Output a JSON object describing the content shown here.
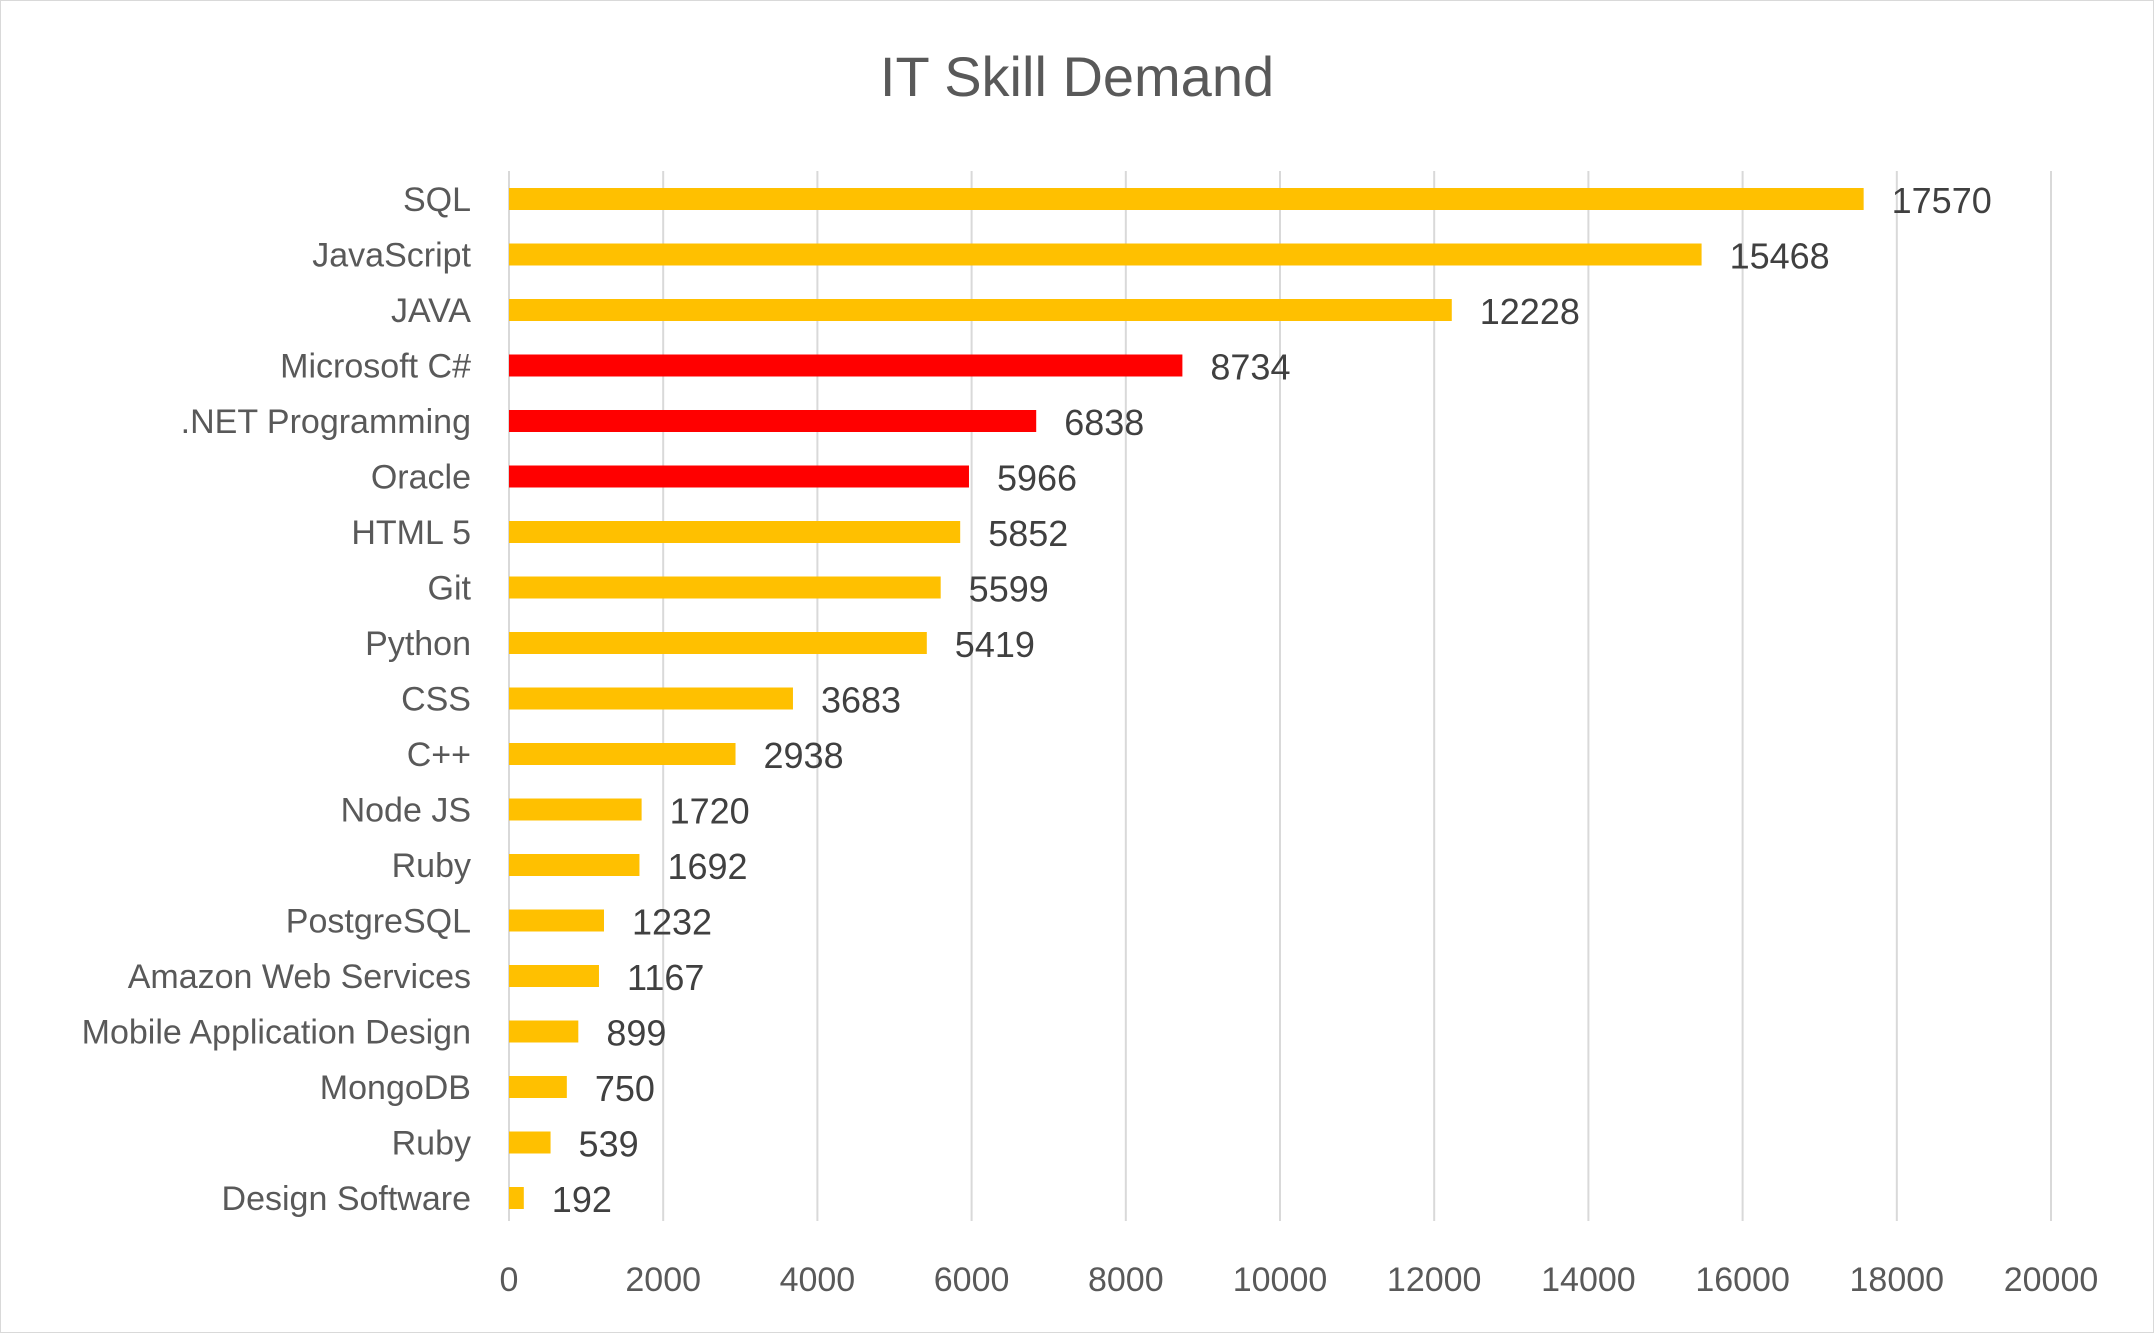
{
  "chart_data": {
    "type": "bar",
    "orientation": "horizontal",
    "title": "IT Skill Demand",
    "xlabel": "",
    "ylabel": "",
    "xlim": [
      0,
      20000
    ],
    "xticks": [
      0,
      2000,
      4000,
      6000,
      8000,
      10000,
      12000,
      14000,
      16000,
      18000,
      20000
    ],
    "grid": "vertical",
    "legend": "none",
    "data_labels": true,
    "categories": [
      "SQL",
      "JavaScript",
      "JAVA",
      "Microsoft C#",
      ".NET Programming",
      "Oracle",
      "HTML 5",
      "Git",
      "Python",
      "CSS",
      "C++",
      "Node JS",
      "Ruby",
      "PostgreSQL",
      "Amazon Web Services",
      "Mobile Application Design",
      "MongoDB",
      "Ruby",
      "Design Software"
    ],
    "values": [
      17570,
      15468,
      12228,
      8734,
      6838,
      5966,
      5852,
      5599,
      5419,
      3683,
      2938,
      1720,
      1692,
      1232,
      1167,
      899,
      750,
      539,
      192
    ],
    "bar_colors": [
      "#FFC000",
      "#FFC000",
      "#FFC000",
      "#FF0000",
      "#FF0000",
      "#FF0000",
      "#FFC000",
      "#FFC000",
      "#FFC000",
      "#FFC000",
      "#FFC000",
      "#FFC000",
      "#FFC000",
      "#FFC000",
      "#FFC000",
      "#FFC000",
      "#FFC000",
      "#FFC000",
      "#FFC000"
    ]
  }
}
